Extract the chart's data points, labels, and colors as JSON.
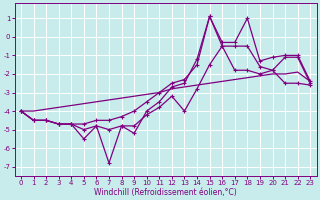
{
  "xlabel": "Windchill (Refroidissement éolien,°C)",
  "background_color": "#c8ecec",
  "grid_color": "#ffffff",
  "line_color": "#800080",
  "xlim_min": -0.5,
  "xlim_max": 23.5,
  "ylim_min": -7.5,
  "ylim_max": 1.8,
  "yticks": [
    1,
    0,
    -1,
    -2,
    -3,
    -4,
    -5,
    -6,
    -7
  ],
  "xticks": [
    0,
    1,
    2,
    3,
    4,
    5,
    6,
    7,
    8,
    9,
    10,
    11,
    12,
    13,
    14,
    15,
    16,
    17,
    18,
    19,
    20,
    21,
    22,
    23
  ],
  "hours": [
    0,
    1,
    2,
    3,
    4,
    5,
    6,
    7,
    8,
    9,
    10,
    11,
    12,
    13,
    14,
    15,
    16,
    17,
    18,
    19,
    20,
    21,
    22,
    23
  ],
  "line_zigzag": [
    -4.0,
    -4.5,
    -4.5,
    -4.7,
    -4.7,
    -5.5,
    -4.8,
    -6.8,
    -4.8,
    -5.2,
    -4.0,
    -3.5,
    -2.7,
    -2.5,
    -1.2,
    1.1,
    -0.5,
    -0.5,
    -0.5,
    -1.6,
    -1.8,
    -1.1,
    -1.1,
    -2.5
  ],
  "line_upper": [
    -4.0,
    -4.5,
    -4.5,
    -4.7,
    -4.7,
    -4.7,
    -4.5,
    -4.5,
    -4.3,
    -4.0,
    -3.5,
    -3.0,
    -2.5,
    -2.3,
    -1.5,
    1.1,
    -0.3,
    -0.3,
    1.0,
    -1.3,
    -1.1,
    -1.0,
    -1.0,
    -2.4
  ],
  "line_lower": [
    -4.0,
    -4.5,
    -4.5,
    -4.7,
    -4.7,
    -5.0,
    -4.8,
    -5.0,
    -4.8,
    -4.8,
    -4.2,
    -3.8,
    -3.2,
    -4.0,
    -2.8,
    -1.5,
    -0.5,
    -1.8,
    -1.8,
    -2.0,
    -1.8,
    -2.5,
    -2.5,
    -2.6
  ],
  "line_trend": [
    -4.0,
    -4.0,
    -3.9,
    -3.8,
    -3.7,
    -3.6,
    -3.5,
    -3.4,
    -3.3,
    -3.2,
    -3.1,
    -3.0,
    -2.8,
    -2.7,
    -2.6,
    -2.5,
    -2.4,
    -2.3,
    -2.2,
    -2.1,
    -2.0,
    -2.0,
    -1.9,
    -2.4
  ],
  "xlabel_fontsize": 5.5,
  "tick_fontsize": 5.0
}
